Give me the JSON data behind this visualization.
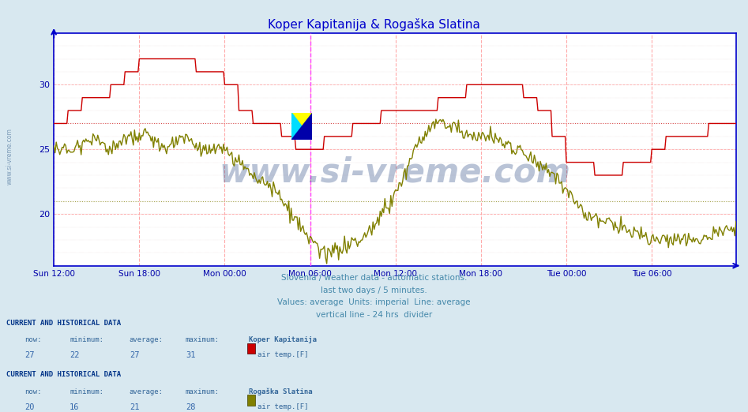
{
  "title": "Koper Kapitanija & Rogaška Slatina",
  "title_color": "#0000cc",
  "bg_color": "#d8e8f0",
  "plot_bg_color": "#ffffff",
  "grid_color_major": "#ffaaaa",
  "ylabel": "",
  "xlabel": "",
  "ylim": [
    16,
    34
  ],
  "yticks": [
    20,
    25,
    30
  ],
  "x_tick_labels": [
    "Sun 12:00",
    "Sun 18:00",
    "Mon 00:00",
    "Mon 06:00",
    "Mon 12:00",
    "Mon 18:00",
    "Tue 00:00",
    "Tue 06:00"
  ],
  "x_tick_positions": [
    0,
    72,
    144,
    216,
    288,
    360,
    432,
    504
  ],
  "total_points": 576,
  "line1_color": "#cc0000",
  "line1_avg": 27,
  "line2_color": "#808000",
  "line2_avg": 21,
  "vline_x": 216,
  "vline_color": "#ff44ff",
  "axis_color": "#0000cc",
  "tick_color": "#0000aa",
  "subtitle_lines": [
    "Slovenia / weather data - automatic stations.",
    "last two days / 5 minutes.",
    "Values: average  Units: imperial  Line: average",
    "vertical line - 24 hrs  divider"
  ],
  "subtitle_color": "#4488aa",
  "legend1_header": "CURRENT AND HISTORICAL DATA",
  "legend1_now": "27",
  "legend1_min": "22",
  "legend1_avg": "27",
  "legend1_max": "31",
  "legend1_station": "Koper Kapitanija",
  "legend1_label": "air temp.[F]",
  "legend1_color": "#cc0000",
  "legend2_header": "CURRENT AND HISTORICAL DATA",
  "legend2_now": "20",
  "legend2_min": "16",
  "legend2_avg": "21",
  "legend2_max": "28",
  "legend2_station": "Rogaška Slatina",
  "legend2_label": "air temp.[F]",
  "legend2_color": "#808000",
  "watermark": "www.si-vreme.com",
  "watermark_color": "#1a3a7a"
}
